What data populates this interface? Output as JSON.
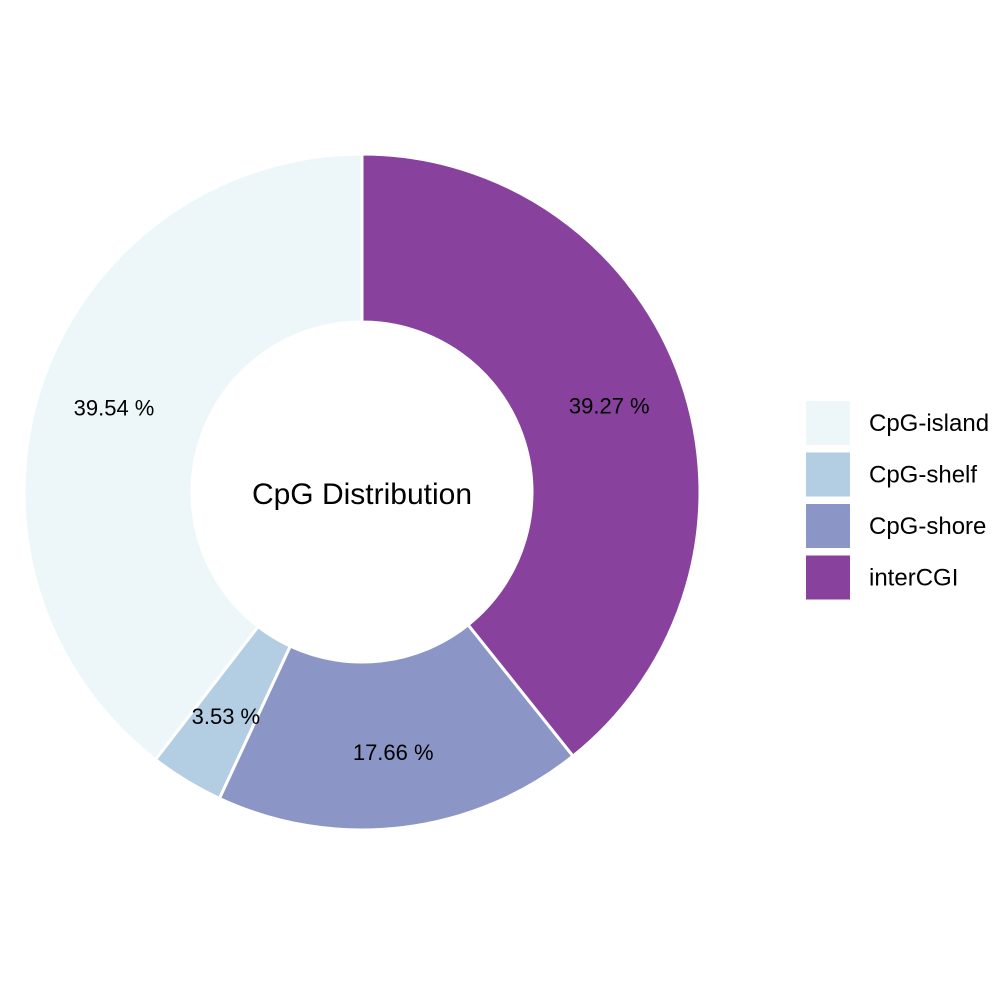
{
  "chart_data": {
    "type": "pie",
    "subtype": "donut",
    "title": "CpG Distribution",
    "categories": [
      "CpG-island",
      "CpG-shelf",
      "CpG-shore",
      "interCGI"
    ],
    "values": [
      39.54,
      3.53,
      17.66,
      39.27
    ],
    "labels": [
      "39.54 %",
      "3.53 %",
      "17.66 %",
      "39.27 %"
    ],
    "colors": [
      "#edf7fa",
      "#b3cde3",
      "#8c96c6",
      "#88419d"
    ],
    "direction": "counterclockwise",
    "legend": {
      "title": "",
      "position": "right",
      "entries": [
        "CpG-island",
        "CpG-shelf",
        "CpG-shore",
        "interCGI"
      ]
    }
  }
}
